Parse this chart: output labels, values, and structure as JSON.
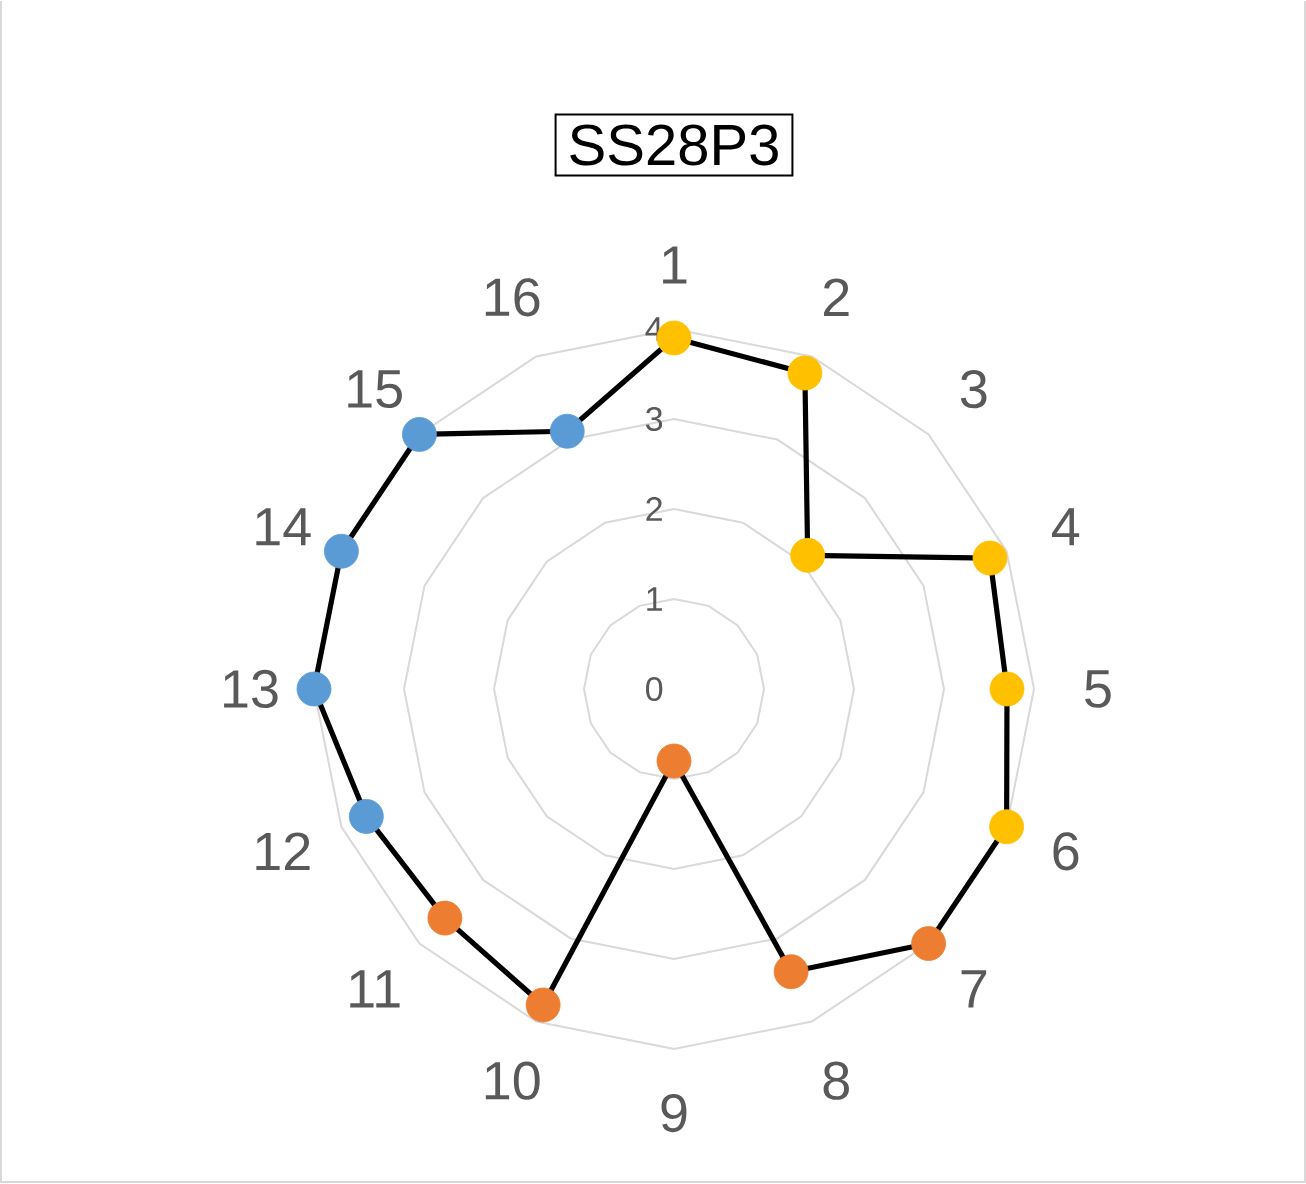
{
  "chart_data": {
    "type": "radar",
    "title": "SS28P3",
    "categories": [
      "1",
      "2",
      "3",
      "4",
      "5",
      "6",
      "7",
      "8",
      "9",
      "10",
      "11",
      "12",
      "13",
      "14",
      "15",
      "16"
    ],
    "series": [
      {
        "color": "#000000",
        "colors": [
          "#ffc000",
          "#ffc000",
          "#ffc000",
          "#ffc000",
          "#ffc000",
          "#ffc000",
          "#ed7d31",
          "#ed7d31",
          "#ed7d31",
          "#ed7d31",
          "#ed7d31",
          "#5b9bd5",
          "#5b9bd5",
          "#5b9bd5",
          "#5b9bd5",
          "#5b9bd5"
        ],
        "values": [
          3.9,
          3.8,
          2.1,
          3.8,
          3.7,
          4.0,
          4.0,
          3.4,
          0.8,
          3.8,
          3.6,
          3.7,
          4.0,
          4.0,
          4.0,
          3.1
        ]
      }
    ],
    "ylim": [
      0,
      4
    ],
    "yticks": [
      0,
      1,
      2,
      3,
      4
    ],
    "grid": true,
    "marker": "circle",
    "line_style": "solid"
  }
}
